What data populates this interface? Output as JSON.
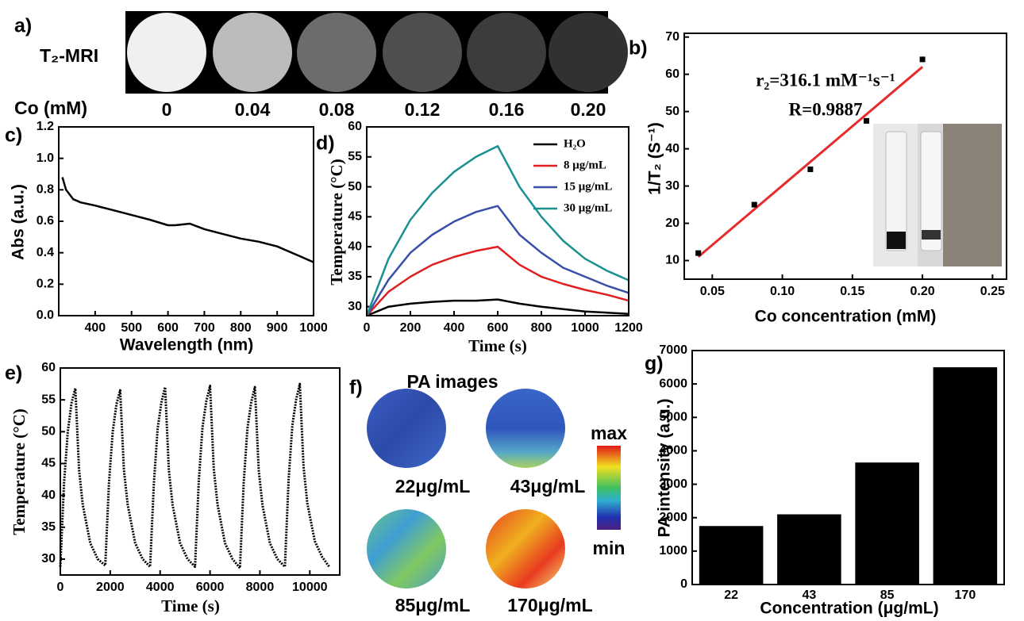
{
  "mri_panel": {
    "label": "a)",
    "row_label": "T₂-MRI",
    "column_title": "Co (mM)",
    "concentrations": [
      "0",
      "0.04",
      "0.08",
      "0.12",
      "0.16",
      "0.20"
    ]
  },
  "pa_panel": {
    "label": "f)",
    "title": "PA images",
    "samples": [
      "22μg/mL",
      "43μg/mL",
      "85μg/mL",
      "170μg/mL"
    ],
    "colorbar_max": "max",
    "colorbar_min": "min"
  },
  "chart_data": [
    {
      "panel_label": "b)",
      "type": "scatter",
      "x": [
        0.04,
        0.08,
        0.12,
        0.16,
        0.2
      ],
      "values": [
        12,
        25,
        34.5,
        47.5,
        64
      ],
      "color": "#000000",
      "fit": {
        "x": [
          0.04,
          0.2
        ],
        "values": [
          11,
          62
        ],
        "color": "#e52b2b"
      },
      "annotations": [
        "r₂=316.1 mM⁻¹s⁻¹",
        "R=0.9887"
      ],
      "xlabel": "Co concentration (mM)",
      "ylabel": "1/T₂ (S⁻¹)",
      "xlim": [
        0.03,
        0.26
      ],
      "ylim": [
        5,
        71
      ],
      "xticks": [
        0.05,
        {
          "value": 0.1,
          "label": "0.10"
        },
        0.15,
        {
          "value": 0.2,
          "label": "0.20"
        },
        0.25
      ],
      "yticks": [
        10,
        20,
        30,
        40,
        50,
        60,
        70
      ]
    },
    {
      "panel_label": "c)",
      "type": "line",
      "x": [
        310,
        320,
        340,
        360,
        400,
        450,
        500,
        550,
        600,
        620,
        660,
        700,
        750,
        800,
        850,
        900,
        950,
        1000
      ],
      "values": [
        0.88,
        0.8,
        0.74,
        0.72,
        0.7,
        0.67,
        0.64,
        0.61,
        0.575,
        0.575,
        0.585,
        0.55,
        0.52,
        0.49,
        0.47,
        0.44,
        0.39,
        0.34
      ],
      "color": "#000000",
      "xlabel": "Wavelength (nm)",
      "ylabel": "Abs (a.u.)",
      "xlim": [
        300,
        1000
      ],
      "ylim": [
        0,
        1.2
      ],
      "xticks": [
        400,
        500,
        600,
        700,
        800,
        900,
        1000
      ],
      "yticks": [
        {
          "value": 0,
          "label": "0.0"
        },
        0.2,
        0.4,
        0.6,
        0.8,
        {
          "value": 1,
          "label": "1.0"
        },
        1.2
      ]
    },
    {
      "panel_label": "d)",
      "type": "line",
      "x": [
        0,
        100,
        200,
        300,
        400,
        500,
        600,
        700,
        800,
        900,
        1000,
        1100,
        1200
      ],
      "series": [
        {
          "name": "H₂O",
          "color": "#000000",
          "values": [
            28.5,
            30,
            30.5,
            30.8,
            31,
            31,
            31.2,
            30.5,
            30,
            29.6,
            29.2,
            29,
            28.8
          ]
        },
        {
          "name": "8 μg/mL",
          "color": "#e02020",
          "values": [
            28.5,
            32.5,
            35,
            37,
            38.3,
            39.3,
            40,
            37,
            35,
            33.8,
            32.8,
            32,
            31
          ]
        },
        {
          "name": "15 μg/mL",
          "color": "#3a4fa8",
          "values": [
            28.5,
            34.5,
            39,
            42,
            44.2,
            45.8,
            46.8,
            42,
            39,
            36.5,
            35,
            33.5,
            32.3
          ]
        },
        {
          "name": "30 μg/mL",
          "color": "#1a9090",
          "values": [
            28.5,
            38,
            44.5,
            49,
            52.5,
            55,
            56.8,
            50,
            45,
            41,
            38,
            36,
            34.4
          ]
        }
      ],
      "xlabel": "Time (s)",
      "ylabel": "Temperature (°C)",
      "xlim": [
        0,
        1200
      ],
      "ylim": [
        28.5,
        60
      ],
      "xticks": [
        0,
        200,
        400,
        600,
        800,
        1000,
        1200
      ],
      "yticks": [
        30,
        35,
        40,
        45,
        50,
        55,
        60
      ]
    },
    {
      "panel_label": "e)",
      "type": "line",
      "x": [
        0,
        150,
        300,
        450,
        600,
        750,
        900,
        1200,
        1500,
        1800,
        1950,
        2100,
        2250,
        2400,
        2550,
        2700,
        3000,
        3300,
        3600,
        3750,
        3900,
        4050,
        4200,
        4350,
        4500,
        4800,
        5100,
        5400,
        5550,
        5700,
        5850,
        6000,
        6150,
        6300,
        6600,
        6900,
        7200,
        7350,
        7500,
        7650,
        7800,
        7950,
        8100,
        8400,
        8700,
        9000,
        9150,
        9300,
        9450,
        9600,
        9750,
        9900,
        10200,
        10500,
        10800
      ],
      "values": [
        28.8,
        42,
        50,
        54.5,
        56.8,
        44,
        38.5,
        32.5,
        30,
        29,
        42,
        50,
        54.3,
        56.5,
        44,
        38.5,
        32.5,
        30,
        28.8,
        42,
        50.5,
        54.6,
        57,
        44,
        38.5,
        32.5,
        30,
        28.8,
        42.2,
        50.7,
        54.8,
        57.2,
        44.2,
        38.6,
        32.5,
        30,
        28.6,
        42,
        50.5,
        54.6,
        57,
        44,
        38.5,
        32.5,
        30,
        28.8,
        42.5,
        51,
        55,
        57.5,
        44.5,
        38.8,
        32.8,
        30.3,
        28.7
      ],
      "color": "#000000",
      "xlabel": "Time (s)",
      "ylabel": "Temperature (°C)",
      "xlim": [
        0,
        11200
      ],
      "ylim": [
        27.5,
        60
      ],
      "xticks": [
        0,
        2000,
        4000,
        6000,
        8000,
        10000
      ],
      "yticks": [
        30,
        35,
        40,
        45,
        50,
        55,
        60
      ]
    },
    {
      "panel_label": "g)",
      "type": "bar",
      "categories": [
        "22",
        "43",
        "85",
        "170"
      ],
      "values": [
        1750,
        2100,
        3650,
        6500
      ],
      "color": "#000000",
      "xlabel": "Concentration (μg/mL)",
      "ylabel": "PA intensity (a.u.)",
      "ylim": [
        0,
        7000
      ],
      "yticks": [
        0,
        1000,
        2000,
        3000,
        4000,
        5000,
        6000,
        7000
      ]
    }
  ]
}
